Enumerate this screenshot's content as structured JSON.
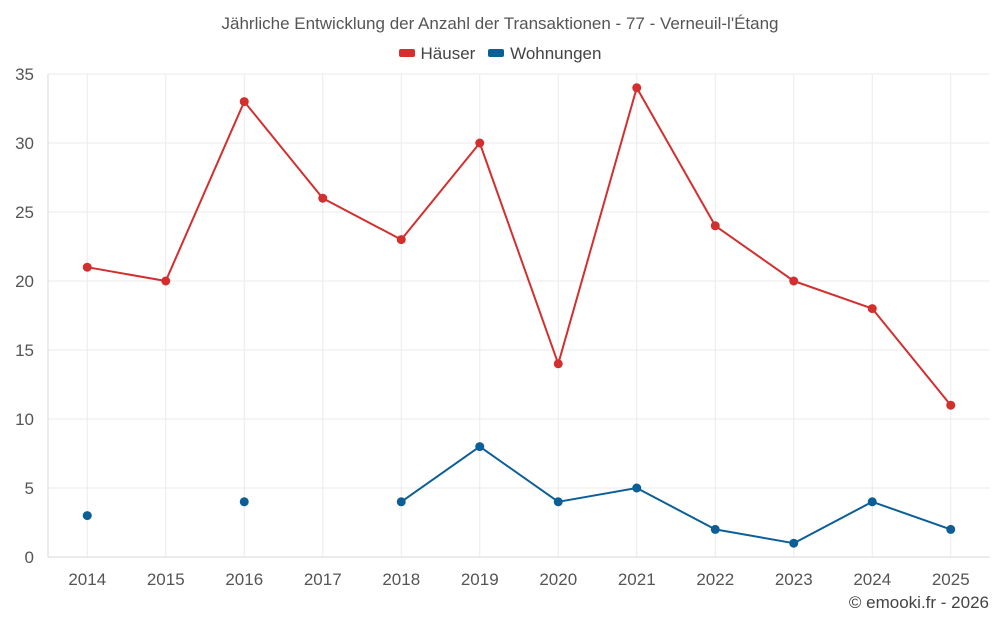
{
  "chart_data": {
    "type": "line",
    "title": "Jährliche Entwicklung der Anzahl der Transaktionen - 77 - Verneuil-l'Étang",
    "x": [
      "2014",
      "2015",
      "2016",
      "2017",
      "2018",
      "2019",
      "2020",
      "2021",
      "2022",
      "2023",
      "2024",
      "2025"
    ],
    "ylim": [
      0,
      35
    ],
    "yticks": [
      0,
      5,
      10,
      15,
      20,
      25,
      30,
      35
    ],
    "grid": true,
    "legend_position": "top-center",
    "series": [
      {
        "name": "Häuser",
        "color": "#d32f2f",
        "values": [
          21,
          20,
          33,
          26,
          23,
          30,
          14,
          34,
          24,
          20,
          18,
          11
        ]
      },
      {
        "name": "Wohnungen",
        "color": "#0b5f96",
        "values": [
          3,
          null,
          4,
          null,
          4,
          8,
          4,
          5,
          2,
          1,
          4,
          2
        ]
      }
    ]
  },
  "credit": "© emooki.fr - 2026"
}
